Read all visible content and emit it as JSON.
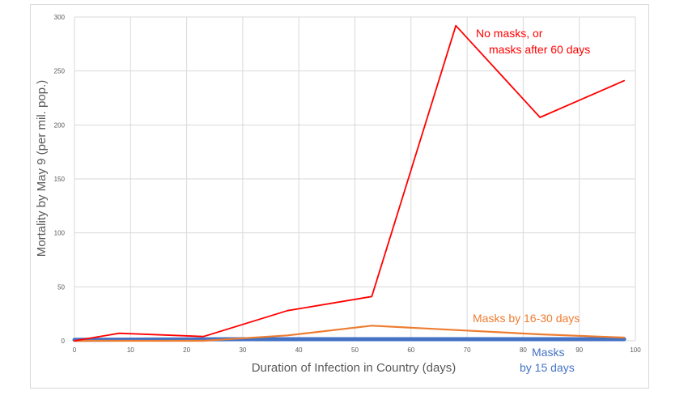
{
  "chart_data": {
    "type": "line",
    "title": "",
    "xlabel": "Duration of Infection  in Country (days)",
    "ylabel": "Mortality by May 9 (per mil. pop.)",
    "xlim": [
      0,
      100
    ],
    "ylim": [
      0,
      300
    ],
    "x_ticks": [
      0,
      10,
      20,
      30,
      40,
      50,
      60,
      70,
      80,
      90,
      100
    ],
    "y_ticks": [
      0,
      50,
      100,
      150,
      200,
      250,
      300
    ],
    "grid": "vertical and horizontal",
    "legend": "none (series labelled by annotations)",
    "series": [
      {
        "name": "No masks, or masks after 60  days",
        "color": "#ff0000",
        "x": [
          0,
          8,
          23,
          38,
          53,
          68,
          83,
          98
        ],
        "y": [
          0,
          7,
          4,
          28,
          41,
          292,
          207,
          241
        ]
      },
      {
        "name": "Masks by 16-30 days",
        "color": "#ed7d31",
        "x": [
          0,
          23,
          38,
          53,
          68,
          83,
          98
        ],
        "y": [
          0,
          0,
          5,
          14,
          10,
          6,
          3
        ]
      },
      {
        "name": "Masks by 15 days",
        "color": "#4472c4",
        "x": [
          0,
          30,
          60,
          98
        ],
        "y": [
          1,
          1.5,
          1.5,
          1.5
        ]
      }
    ],
    "annotations": [
      {
        "lines": [
          "No masks, or",
          "masks after 60  days"
        ],
        "color": "#ff0000"
      },
      {
        "lines": [
          "Masks by 16-30 days"
        ],
        "color": "#ed7d31"
      },
      {
        "lines": [
          "Masks",
          "by 15 days"
        ],
        "color": "#4472c4"
      }
    ]
  }
}
